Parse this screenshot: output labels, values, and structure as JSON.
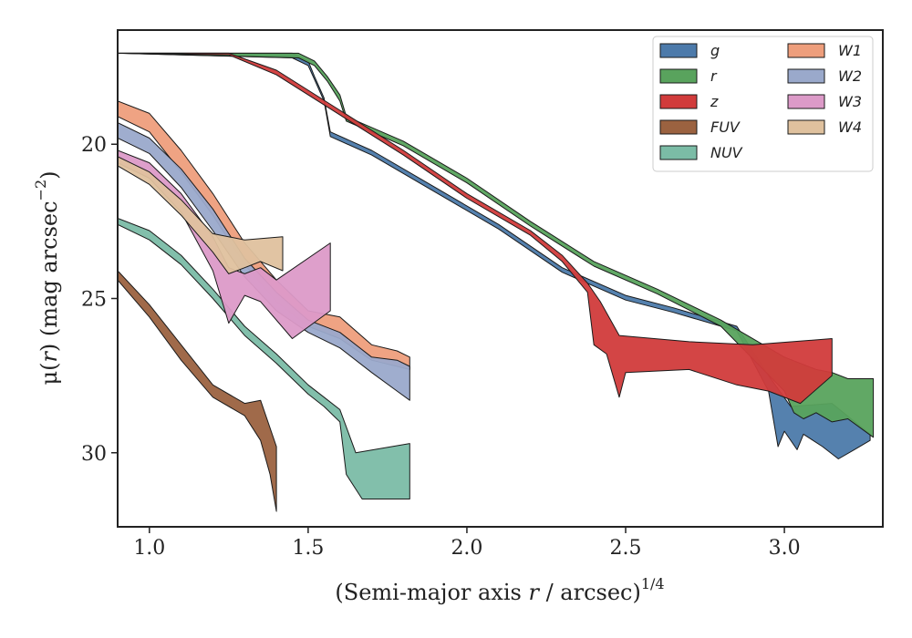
{
  "chart_data": {
    "type": "area",
    "title": "",
    "xlabel_parts": [
      "(Semi-major axis ",
      "r",
      " / arcsec)",
      "1/4"
    ],
    "ylabel_parts": [
      "μ(",
      "r",
      ") (mag arcsec",
      "−2",
      ")"
    ],
    "xlim": [
      0.9,
      3.31
    ],
    "ylim": [
      32.4,
      16.3
    ],
    "y_inverted": true,
    "x_ticks": [
      1.0,
      1.5,
      2.0,
      2.5,
      3.0
    ],
    "x_tick_labels": [
      "1.0",
      "1.5",
      "2.0",
      "2.5",
      "3.0"
    ],
    "y_ticks": [
      20,
      25,
      30
    ],
    "y_tick_labels": [
      "20",
      "25",
      "30"
    ],
    "grid": false,
    "legend_position": "top-right",
    "legend_columns": 2,
    "series": [
      {
        "name": "g",
        "color": "#4c7aaa",
        "upper": [
          [
            0.9,
            17.05
          ],
          [
            1.45,
            17.05
          ],
          [
            1.5,
            17.3
          ],
          [
            1.52,
            17.8
          ],
          [
            1.55,
            18.5
          ],
          [
            1.57,
            19.6
          ],
          [
            1.7,
            20.2
          ],
          [
            1.9,
            21.4
          ],
          [
            2.1,
            22.6
          ],
          [
            2.3,
            24.0
          ],
          [
            2.5,
            24.9
          ],
          [
            2.65,
            25.3
          ],
          [
            2.85,
            25.9
          ],
          [
            2.95,
            27.5
          ],
          [
            3.02,
            28.5
          ],
          [
            3.15,
            28.4
          ],
          [
            3.27,
            29.4
          ]
        ],
        "lower": [
          [
            3.27,
            29.6
          ],
          [
            3.22,
            29.9
          ],
          [
            3.17,
            30.2
          ],
          [
            3.12,
            29.8
          ],
          [
            3.06,
            29.4
          ],
          [
            3.04,
            29.9
          ],
          [
            3.0,
            29.3
          ],
          [
            2.98,
            29.8
          ],
          [
            2.95,
            28.0
          ],
          [
            2.85,
            26.05
          ],
          [
            2.65,
            25.45
          ],
          [
            2.5,
            25.05
          ],
          [
            2.3,
            24.15
          ],
          [
            2.1,
            22.75
          ],
          [
            1.9,
            21.55
          ],
          [
            1.7,
            20.35
          ],
          [
            1.57,
            19.75
          ],
          [
            1.55,
            18.6
          ],
          [
            1.52,
            17.9
          ],
          [
            1.5,
            17.45
          ],
          [
            1.45,
            17.2
          ],
          [
            0.9,
            17.05
          ]
        ]
      },
      {
        "name": "r",
        "color": "#59a35d",
        "upper": [
          [
            0.9,
            17.05
          ],
          [
            1.47,
            17.05
          ],
          [
            1.52,
            17.3
          ],
          [
            1.56,
            17.8
          ],
          [
            1.6,
            18.4
          ],
          [
            1.62,
            19.1
          ],
          [
            1.8,
            19.9
          ],
          [
            2.0,
            21.1
          ],
          [
            2.2,
            22.5
          ],
          [
            2.4,
            23.8
          ],
          [
            2.6,
            24.7
          ],
          [
            2.8,
            25.7
          ],
          [
            3.0,
            26.9
          ],
          [
            3.1,
            27.3
          ],
          [
            3.15,
            27.4
          ],
          [
            3.2,
            27.6
          ],
          [
            3.28,
            27.6
          ],
          [
            3.28,
            29.4
          ]
        ],
        "lower": [
          [
            3.28,
            29.5
          ],
          [
            3.2,
            28.9
          ],
          [
            3.15,
            29.0
          ],
          [
            3.1,
            28.7
          ],
          [
            3.06,
            28.9
          ],
          [
            3.03,
            28.7
          ],
          [
            3.0,
            28.0
          ],
          [
            2.8,
            25.9
          ],
          [
            2.6,
            24.85
          ],
          [
            2.4,
            23.95
          ],
          [
            2.2,
            22.65
          ],
          [
            2.0,
            21.25
          ],
          [
            1.8,
            20.05
          ],
          [
            1.62,
            19.25
          ],
          [
            1.6,
            18.6
          ],
          [
            1.56,
            17.95
          ],
          [
            1.52,
            17.45
          ],
          [
            1.47,
            17.2
          ],
          [
            0.9,
            17.05
          ]
        ]
      },
      {
        "name": "z",
        "color": "#d13b3b",
        "upper": [
          [
            0.9,
            17.05
          ],
          [
            1.25,
            17.05
          ],
          [
            1.4,
            17.6
          ],
          [
            1.6,
            18.9
          ],
          [
            1.8,
            20.2
          ],
          [
            2.0,
            21.6
          ],
          [
            2.2,
            22.8
          ],
          [
            2.3,
            23.6
          ],
          [
            2.38,
            24.5
          ],
          [
            2.42,
            25.1
          ],
          [
            2.48,
            26.2
          ],
          [
            2.7,
            26.4
          ],
          [
            2.9,
            26.5
          ],
          [
            3.15,
            26.3
          ],
          [
            3.15,
            27.4
          ]
        ],
        "lower": [
          [
            3.15,
            27.5
          ],
          [
            3.05,
            28.4
          ],
          [
            2.95,
            28.0
          ],
          [
            2.85,
            27.8
          ],
          [
            2.7,
            27.3
          ],
          [
            2.5,
            27.4
          ],
          [
            2.48,
            28.2
          ],
          [
            2.44,
            26.8
          ],
          [
            2.4,
            26.5
          ],
          [
            2.38,
            24.8
          ],
          [
            2.3,
            23.8
          ],
          [
            2.2,
            22.95
          ],
          [
            2.0,
            21.75
          ],
          [
            1.8,
            20.35
          ],
          [
            1.6,
            19.05
          ],
          [
            1.4,
            17.75
          ],
          [
            1.25,
            17.1
          ],
          [
            0.9,
            17.05
          ]
        ]
      },
      {
        "name": "FUV",
        "color": "#9b6240",
        "upper": [
          [
            0.9,
            24.1
          ],
          [
            1.0,
            25.2
          ],
          [
            1.1,
            26.5
          ],
          [
            1.2,
            27.8
          ],
          [
            1.3,
            28.4
          ],
          [
            1.35,
            28.3
          ],
          [
            1.4,
            29.8
          ]
        ],
        "lower": [
          [
            1.4,
            31.9
          ],
          [
            1.38,
            30.7
          ],
          [
            1.35,
            29.6
          ],
          [
            1.3,
            28.8
          ],
          [
            1.2,
            28.2
          ],
          [
            1.1,
            27.0
          ],
          [
            1.0,
            25.6
          ],
          [
            0.9,
            24.4
          ]
        ]
      },
      {
        "name": "NUV",
        "color": "#7bbca6",
        "upper": [
          [
            0.9,
            22.4
          ],
          [
            1.0,
            22.8
          ],
          [
            1.1,
            23.6
          ],
          [
            1.2,
            24.7
          ],
          [
            1.3,
            25.9
          ],
          [
            1.4,
            26.8
          ],
          [
            1.5,
            27.8
          ],
          [
            1.55,
            28.2
          ],
          [
            1.6,
            28.6
          ],
          [
            1.65,
            30.0
          ],
          [
            1.82,
            29.7
          ]
        ],
        "lower": [
          [
            1.82,
            31.5
          ],
          [
            1.67,
            31.5
          ],
          [
            1.62,
            30.7
          ],
          [
            1.6,
            29.0
          ],
          [
            1.55,
            28.5
          ],
          [
            1.5,
            28.1
          ],
          [
            1.4,
            27.1
          ],
          [
            1.3,
            26.2
          ],
          [
            1.2,
            25.0
          ],
          [
            1.1,
            23.9
          ],
          [
            1.0,
            23.1
          ],
          [
            0.9,
            22.6
          ]
        ]
      },
      {
        "name": "W1",
        "color": "#ee9e7c",
        "upper": [
          [
            0.9,
            18.6
          ],
          [
            1.0,
            19.0
          ],
          [
            1.1,
            20.2
          ],
          [
            1.2,
            21.6
          ],
          [
            1.3,
            23.2
          ],
          [
            1.4,
            24.4
          ],
          [
            1.5,
            25.4
          ],
          [
            1.6,
            25.6
          ],
          [
            1.7,
            26.5
          ],
          [
            1.78,
            26.7
          ],
          [
            1.82,
            26.9
          ],
          [
            1.82,
            27.2
          ]
        ],
        "lower": [
          [
            1.82,
            27.3
          ],
          [
            1.7,
            27.0
          ],
          [
            1.6,
            26.3
          ],
          [
            1.5,
            25.9
          ],
          [
            1.4,
            25.1
          ],
          [
            1.3,
            23.9
          ],
          [
            1.2,
            22.3
          ],
          [
            1.1,
            20.9
          ],
          [
            1.0,
            19.6
          ],
          [
            0.9,
            19.1
          ]
        ]
      },
      {
        "name": "W2",
        "color": "#9aa9cb",
        "upper": [
          [
            0.9,
            19.3
          ],
          [
            1.0,
            19.8
          ],
          [
            1.1,
            20.8
          ],
          [
            1.2,
            22.1
          ],
          [
            1.3,
            23.7
          ],
          [
            1.4,
            24.8
          ],
          [
            1.5,
            25.7
          ],
          [
            1.6,
            26.1
          ],
          [
            1.7,
            26.9
          ],
          [
            1.78,
            27.0
          ],
          [
            1.82,
            27.2
          ],
          [
            1.82,
            28.2
          ]
        ],
        "lower": [
          [
            1.82,
            28.3
          ],
          [
            1.78,
            28.0
          ],
          [
            1.7,
            27.4
          ],
          [
            1.6,
            26.6
          ],
          [
            1.5,
            26.1
          ],
          [
            1.4,
            25.4
          ],
          [
            1.3,
            24.3
          ],
          [
            1.2,
            22.8
          ],
          [
            1.1,
            21.4
          ],
          [
            1.0,
            20.3
          ],
          [
            0.9,
            19.8
          ]
        ]
      },
      {
        "name": "W3",
        "color": "#dc9ac8",
        "upper": [
          [
            0.9,
            20.2
          ],
          [
            1.0,
            20.6
          ],
          [
            1.1,
            21.6
          ],
          [
            1.2,
            23.0
          ],
          [
            1.25,
            24.0
          ],
          [
            1.3,
            24.2
          ],
          [
            1.35,
            24.0
          ],
          [
            1.4,
            24.4
          ],
          [
            1.57,
            23.2
          ],
          [
            1.57,
            25.3
          ]
        ],
        "lower": [
          [
            1.57,
            25.4
          ],
          [
            1.45,
            26.3
          ],
          [
            1.35,
            25.1
          ],
          [
            1.3,
            24.9
          ],
          [
            1.25,
            25.8
          ],
          [
            1.2,
            24.1
          ],
          [
            1.1,
            22.2
          ],
          [
            1.0,
            21.1
          ],
          [
            0.9,
            20.6
          ]
        ]
      },
      {
        "name": "W4",
        "color": "#dfc19e",
        "upper": [
          [
            0.9,
            20.4
          ],
          [
            1.0,
            20.9
          ],
          [
            1.1,
            21.8
          ],
          [
            1.2,
            22.9
          ],
          [
            1.3,
            23.1
          ],
          [
            1.42,
            23.0
          ],
          [
            1.42,
            24.1
          ]
        ],
        "lower": [
          [
            1.42,
            24.1
          ],
          [
            1.35,
            23.8
          ],
          [
            1.3,
            24.0
          ],
          [
            1.25,
            24.2
          ],
          [
            1.2,
            23.5
          ],
          [
            1.1,
            22.3
          ],
          [
            1.0,
            21.3
          ],
          [
            0.9,
            20.7
          ]
        ]
      }
    ]
  }
}
